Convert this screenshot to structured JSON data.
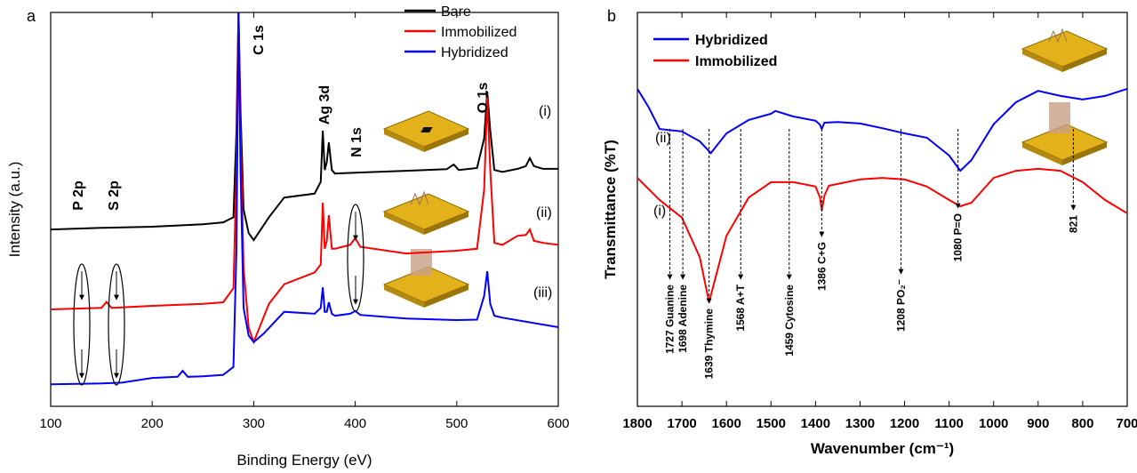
{
  "chart_data": [
    {
      "type": "line",
      "panel": "a",
      "x_label": "Binding Energy (eV)",
      "y_label": "Intensity (a.u.)",
      "xlim": [
        100,
        600
      ],
      "xticks": [
        100,
        200,
        300,
        400,
        500,
        600
      ],
      "ylim": [
        0,
        100
      ],
      "legend": "upper right",
      "series": [
        {
          "name": "Bare",
          "color": "#000000",
          "x": [
            100,
            150,
            200,
            250,
            270,
            280,
            283,
            285,
            287,
            290,
            295,
            300,
            315,
            330,
            360,
            366,
            368,
            370,
            372,
            374,
            377,
            380,
            420,
            450,
            490,
            497,
            502,
            520,
            527,
            530,
            533,
            537,
            545,
            560,
            568,
            572,
            576,
            585,
            600
          ],
          "values": [
            44.9,
            45.3,
            45.6,
            46.2,
            46.7,
            48,
            70,
            100,
            75,
            50,
            44,
            42.2,
            48,
            53,
            54,
            57,
            70,
            60,
            62,
            67,
            60,
            59.1,
            59.5,
            59.8,
            60.2,
            61.4,
            60,
            60.5,
            68,
            79.9,
            70,
            60,
            59.5,
            60.3,
            61,
            63,
            61,
            60.3,
            60.3
          ]
        },
        {
          "name": "Immobilized",
          "color": "#ff0000",
          "x": [
            100,
            150,
            155,
            160,
            200,
            250,
            270,
            280,
            283,
            285,
            287,
            290,
            295,
            300,
            315,
            330,
            360,
            366,
            368,
            370,
            372,
            374,
            377,
            380,
            395,
            400,
            405,
            450,
            500,
            520,
            527,
            530,
            533,
            537,
            545,
            560,
            568,
            572,
            576,
            585,
            600
          ],
          "values": [
            24.6,
            25,
            26.5,
            25,
            25.5,
            26,
            26.4,
            30,
            60,
            100,
            70,
            35,
            20,
            16.3,
            26,
            31,
            34,
            36,
            51.7,
            40,
            42,
            48.5,
            40,
            40,
            41,
            42.7,
            40.5,
            38.8,
            39.5,
            40,
            55,
            78.3,
            60,
            41.5,
            41,
            43.3,
            43.5,
            44.9,
            42,
            41.5,
            41
          ]
        },
        {
          "name": "Hybridized",
          "color": "#0000ff",
          "x": [
            100,
            150,
            170,
            200,
            225,
            230,
            235,
            250,
            270,
            280,
            283,
            285,
            287,
            290,
            295,
            300,
            310,
            330,
            360,
            366,
            368,
            370,
            372,
            374,
            377,
            380,
            395,
            400,
            405,
            450,
            500,
            520,
            527,
            530,
            533,
            537,
            545,
            600
          ],
          "values": [
            5.6,
            5.8,
            6,
            7.2,
            7.5,
            9,
            7.5,
            7.6,
            8,
            10,
            40,
            100,
            60,
            25,
            18,
            16.3,
            18.5,
            24,
            23.5,
            25,
            30.2,
            24,
            24,
            26.4,
            23.5,
            23,
            23.5,
            24.2,
            23.2,
            22.3,
            21.9,
            22,
            28,
            34.3,
            26,
            23,
            22.5,
            20.1
          ]
        }
      ],
      "peak_labels": [
        {
          "text": "C 1s",
          "x": 285
        },
        {
          "text": "Ag 3d",
          "x": 370
        },
        {
          "text": "N 1s",
          "x": 400
        },
        {
          "text": "O 1s",
          "x": 530
        },
        {
          "text": "P 2p",
          "x": 133
        },
        {
          "text": "S 2p",
          "x": 167
        }
      ],
      "curve_labels": [
        "(i)",
        "(ii)",
        "(iii)"
      ]
    },
    {
      "type": "line",
      "panel": "b",
      "x_label": "Wavenumber (cm⁻¹)",
      "y_label": "Transmittance (%T)",
      "xlim": [
        1800,
        700
      ],
      "xticks": [
        1800,
        1700,
        1600,
        1500,
        1400,
        1300,
        1200,
        1100,
        1000,
        900,
        800,
        700
      ],
      "ylim": [
        0,
        100
      ],
      "legend": "upper left",
      "series": [
        {
          "name": "Hybridized",
          "color": "#0000ff",
          "x": [
            1800,
            1775,
            1750,
            1700,
            1660,
            1635,
            1600,
            1550,
            1500,
            1490,
            1450,
            1400,
            1390,
            1386,
            1380,
            1350,
            1300,
            1250,
            1200,
            1150,
            1100,
            1075,
            1050,
            1000,
            950,
            900,
            850,
            800,
            750,
            700
          ],
          "values": [
            80.6,
            76,
            70.4,
            69.8,
            67.3,
            64.3,
            69.3,
            72.7,
            74.3,
            75,
            73.6,
            72.5,
            71.5,
            70.4,
            72,
            72.2,
            71.8,
            70.6,
            69.3,
            68.2,
            63.7,
            59.8,
            62.5,
            71.6,
            77.2,
            80.1,
            78.8,
            77.9,
            78.8,
            80.6
          ]
        },
        {
          "name": "Immobilized",
          "color": "#ff0000",
          "x": [
            1800,
            1750,
            1700,
            1660,
            1639,
            1600,
            1550,
            1500,
            1450,
            1400,
            1390,
            1386,
            1380,
            1370,
            1300,
            1250,
            1200,
            1150,
            1100,
            1075,
            1050,
            1000,
            950,
            900,
            850,
            800,
            750,
            700
          ],
          "values": [
            58,
            52.4,
            47.9,
            37.9,
            26.4,
            43.3,
            53,
            56.9,
            56.9,
            55.8,
            53,
            49.7,
            53.5,
            56,
            57.6,
            58,
            57.6,
            55.8,
            52.4,
            50.8,
            51.7,
            58,
            59.8,
            60.3,
            59.8,
            56.9,
            52.4,
            49
          ]
        }
      ],
      "peak_labels": [
        {
          "text": "1727 Guanine",
          "x": 1727
        },
        {
          "text": "1698 Adenine",
          "x": 1698
        },
        {
          "text": "1639 Thymine",
          "x": 1639
        },
        {
          "text": "1568 A+T",
          "x": 1568
        },
        {
          "text": "1459 Cytosine",
          "x": 1459
        },
        {
          "text": "1386 C+G",
          "x": 1386
        },
        {
          "text": "1208 PO₂⁻",
          "x": 1208
        },
        {
          "text": "1080 P=O",
          "x": 1080
        },
        {
          "text": "821",
          "x": 821
        }
      ],
      "curve_labels": [
        "(ii)",
        "(i)"
      ]
    }
  ]
}
